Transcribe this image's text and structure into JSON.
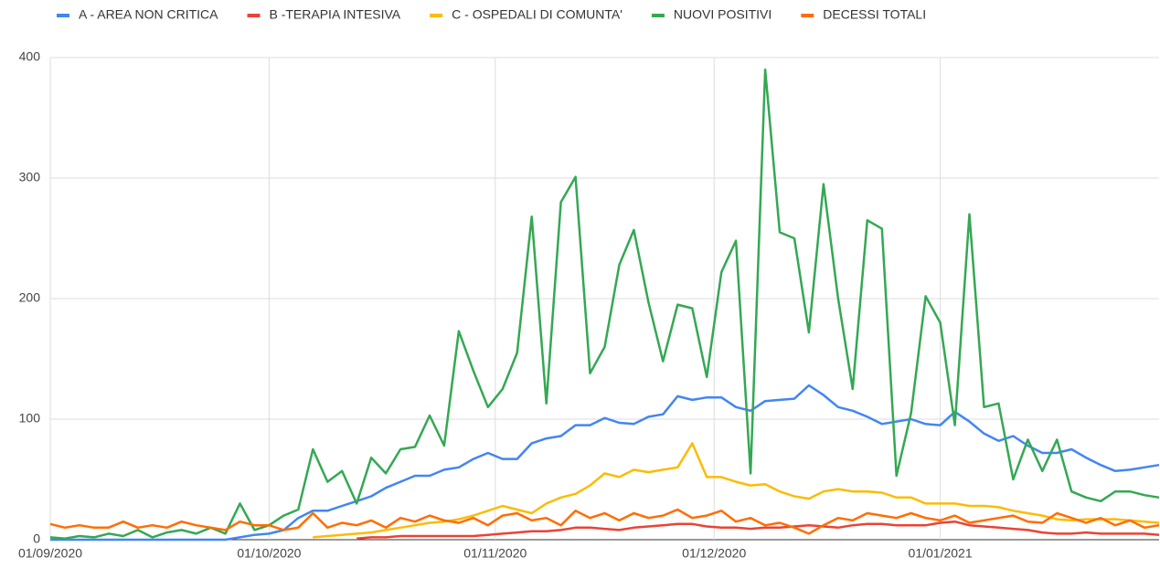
{
  "chart_data": {
    "type": "line",
    "x": [
      "2020-09-01",
      "2020-09-03",
      "2020-09-05",
      "2020-09-07",
      "2020-09-09",
      "2020-09-11",
      "2020-09-13",
      "2020-09-15",
      "2020-09-17",
      "2020-09-19",
      "2020-09-21",
      "2020-09-23",
      "2020-09-25",
      "2020-09-27",
      "2020-09-29",
      "2020-10-01",
      "2020-10-03",
      "2020-10-05",
      "2020-10-07",
      "2020-10-09",
      "2020-10-11",
      "2020-10-13",
      "2020-10-15",
      "2020-10-17",
      "2020-10-19",
      "2020-10-21",
      "2020-10-23",
      "2020-10-25",
      "2020-10-27",
      "2020-10-29",
      "2020-10-31",
      "2020-11-02",
      "2020-11-04",
      "2020-11-06",
      "2020-11-08",
      "2020-11-10",
      "2020-11-12",
      "2020-11-14",
      "2020-11-16",
      "2020-11-18",
      "2020-11-20",
      "2020-11-22",
      "2020-11-24",
      "2020-11-26",
      "2020-11-28",
      "2020-11-30",
      "2020-12-02",
      "2020-12-04",
      "2020-12-06",
      "2020-12-08",
      "2020-12-10",
      "2020-12-12",
      "2020-12-14",
      "2020-12-16",
      "2020-12-18",
      "2020-12-20",
      "2020-12-22",
      "2020-12-24",
      "2020-12-26",
      "2020-12-28",
      "2020-12-30",
      "2021-01-01",
      "2021-01-03",
      "2021-01-05",
      "2021-01-07",
      "2021-01-09",
      "2021-01-11",
      "2021-01-13",
      "2021-01-15",
      "2021-01-17",
      "2021-01-19",
      "2021-01-21",
      "2021-01-23",
      "2021-01-25",
      "2021-01-27",
      "2021-01-29",
      "2021-01-31"
    ],
    "series": [
      {
        "name": "A - AREA NON CRITICA",
        "color": "#4285f4",
        "values": [
          0,
          0,
          0,
          0,
          0,
          0,
          0,
          0,
          0,
          0,
          0,
          0,
          0,
          2,
          4,
          5,
          8,
          18,
          24,
          24,
          28,
          32,
          36,
          43,
          48,
          53,
          53,
          58,
          60,
          67,
          72,
          67,
          67,
          80,
          84,
          86,
          95,
          95,
          101,
          97,
          96,
          102,
          104,
          119,
          116,
          118,
          118,
          110,
          107,
          115,
          116,
          117,
          128,
          120,
          110,
          107,
          102,
          96,
          98,
          100,
          96,
          95,
          106,
          98,
          88,
          82,
          86,
          78,
          72,
          72,
          75,
          68,
          62,
          57,
          58,
          60,
          62
        ]
      },
      {
        "name": "B -TERAPIA INTESIVA",
        "color": "#ea4335",
        "values": [
          null,
          null,
          null,
          null,
          null,
          null,
          null,
          null,
          null,
          null,
          null,
          null,
          null,
          null,
          null,
          null,
          null,
          null,
          null,
          null,
          null,
          1,
          2,
          2,
          3,
          3,
          3,
          3,
          3,
          3,
          4,
          5,
          6,
          7,
          7,
          8,
          10,
          10,
          9,
          8,
          10,
          11,
          12,
          13,
          13,
          11,
          10,
          10,
          9,
          10,
          10,
          11,
          12,
          11,
          10,
          12,
          13,
          13,
          12,
          12,
          12,
          14,
          15,
          12,
          11,
          10,
          9,
          8,
          6,
          5,
          5,
          6,
          5,
          5,
          5,
          5,
          4
        ]
      },
      {
        "name": "C - OSPEDALI DI COMUNTA'",
        "color": "#fbbc04",
        "values": [
          null,
          null,
          null,
          null,
          null,
          null,
          null,
          null,
          null,
          null,
          null,
          null,
          null,
          null,
          null,
          null,
          null,
          null,
          2,
          3,
          4,
          5,
          6,
          8,
          10,
          12,
          14,
          15,
          17,
          20,
          24,
          28,
          25,
          22,
          30,
          35,
          38,
          45,
          55,
          52,
          58,
          56,
          58,
          60,
          80,
          52,
          52,
          48,
          45,
          46,
          40,
          36,
          34,
          40,
          42,
          40,
          40,
          39,
          35,
          35,
          30,
          30,
          30,
          28,
          28,
          27,
          24,
          22,
          20,
          17,
          16,
          17,
          17,
          17,
          16,
          15,
          14
        ]
      },
      {
        "name": "NUOVI POSITIVI",
        "color": "#34a853",
        "values": [
          2,
          1,
          3,
          2,
          5,
          3,
          8,
          2,
          6,
          8,
          5,
          10,
          5,
          30,
          8,
          12,
          20,
          25,
          75,
          48,
          57,
          30,
          68,
          55,
          75,
          77,
          103,
          78,
          173,
          140,
          110,
          125,
          155,
          268,
          113,
          280,
          301,
          138,
          160,
          228,
          257,
          197,
          148,
          195,
          192,
          135,
          222,
          248,
          55,
          390,
          255,
          250,
          172,
          295,
          200,
          125,
          265,
          258,
          53,
          105,
          202,
          180,
          95,
          270,
          110,
          113,
          50,
          83,
          57,
          83,
          40,
          35,
          32,
          40,
          40,
          37,
          35
        ]
      },
      {
        "name": "DECESSI TOTALI",
        "color": "#ff6d01",
        "values": [
          13,
          10,
          12,
          10,
          10,
          15,
          10,
          12,
          10,
          15,
          12,
          10,
          8,
          15,
          12,
          12,
          8,
          10,
          22,
          10,
          14,
          12,
          16,
          10,
          18,
          15,
          20,
          16,
          14,
          18,
          12,
          20,
          22,
          16,
          18,
          12,
          24,
          18,
          22,
          16,
          22,
          18,
          20,
          25,
          18,
          20,
          24,
          15,
          18,
          12,
          14,
          10,
          5,
          12,
          18,
          16,
          22,
          20,
          18,
          22,
          18,
          16,
          20,
          14,
          16,
          18,
          20,
          15,
          14,
          22,
          18,
          14,
          18,
          12,
          16,
          10,
          12
        ]
      }
    ],
    "xlim": [
      "2020-09-01",
      "2021-01-31"
    ],
    "xticks": [
      {
        "value": "2020-09-01",
        "label": "01/09/2020"
      },
      {
        "value": "2020-10-01",
        "label": "01/10/2020"
      },
      {
        "value": "2020-11-01",
        "label": "01/11/2020"
      },
      {
        "value": "2020-12-01",
        "label": "01/12/2020"
      },
      {
        "value": "2021-01-01",
        "label": "01/01/2021"
      }
    ],
    "ylim": [
      0,
      400
    ],
    "yticks": [
      0,
      100,
      200,
      300,
      400
    ],
    "grid": true,
    "legend": "top"
  }
}
